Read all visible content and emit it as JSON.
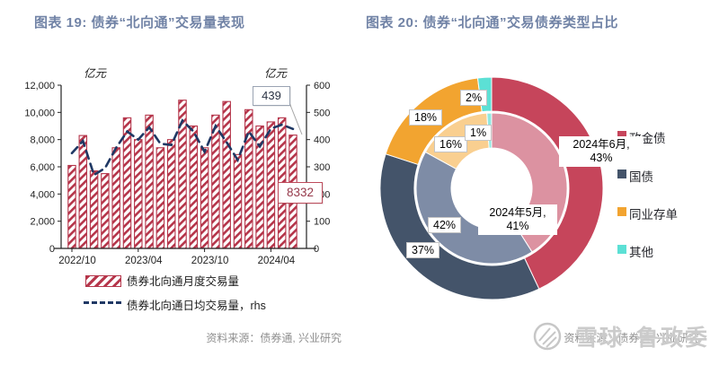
{
  "page": {
    "left": {
      "title": "图表 19: 债券“北向通”交易量表现",
      "unit_left": "亿元",
      "unit_right": "亿元",
      "legend": [
        {
          "label": "债券北向通月度交易量",
          "swatch": "hatch",
          "color": "#B5354A"
        },
        {
          "label": "债券北向通日均交易量，rhs",
          "swatch": "dash",
          "color": "#1F3864"
        }
      ],
      "source": "资料来源：债券通, 兴业研究"
    },
    "right": {
      "title": "图表 20: 债券“北向通”交易债券类型占比",
      "labels": {
        "p18": "18%",
        "p2": "2%",
        "p16": "16%",
        "p1": "1%",
        "p42": "42%",
        "p37": "37%",
        "june_l1": "2024年6月,",
        "june_l2": "43%",
        "may_l1": "2024年5月,",
        "may_l2": "41%"
      },
      "legend": [
        {
          "label": "政金债",
          "color": "#C6455B"
        },
        {
          "label": "国债",
          "color": "#44546A"
        },
        {
          "label": "同业存单",
          "color": "#F2A430"
        },
        {
          "label": "其他",
          "color": "#5CE0D5"
        }
      ],
      "source": "资料来源：债券通, 兴业研究",
      "watermark": {
        "name": "雪球",
        "author": "鲁政委"
      }
    }
  },
  "chart_data": [
    {
      "type": "bar",
      "title": "图表 19: 债券“北向通”交易量表现",
      "categories": [
        "2022/10",
        "2022/11",
        "2022/12",
        "2023/01",
        "2023/02",
        "2023/03",
        "2023/04",
        "2023/05",
        "2023/06",
        "2023/07",
        "2023/08",
        "2023/09",
        "2023/10",
        "2023/11",
        "2023/12",
        "2024/01",
        "2024/02",
        "2024/03",
        "2024/04",
        "2024/05",
        "2024/06"
      ],
      "x_tick_labels": [
        "2022/10",
        "2023/04",
        "2023/10",
        "2024/04"
      ],
      "x_tick_indices": [
        0,
        6,
        12,
        18
      ],
      "series": [
        {
          "name": "债券北向通月度交易量",
          "type": "bar",
          "axis": "left",
          "color": "#B5354A",
          "values": [
            6100,
            8300,
            5700,
            5500,
            7400,
            9600,
            8000,
            9800,
            7400,
            8000,
            10900,
            9000,
            7400,
            9800,
            10800,
            6900,
            10200,
            9000,
            9300,
            9600,
            8332
          ]
        },
        {
          "name": "债券北向通日均交易量，rhs",
          "type": "line",
          "axis": "right",
          "color": "#1F3864",
          "values": [
            350,
            395,
            270,
            295,
            370,
            430,
            400,
            445,
            385,
            380,
            470,
            430,
            355,
            450,
            390,
            325,
            430,
            375,
            440,
            455,
            439
          ]
        }
      ],
      "left_axis": {
        "label": "亿元",
        "min": 0,
        "max": 12000,
        "step": 2000
      },
      "right_axis": {
        "label": "亿元",
        "min": 0,
        "max": 600,
        "step": 100
      },
      "annotations": [
        {
          "target": "line_last_point",
          "text": "439"
        },
        {
          "target": "bar_last_point",
          "text": "8332"
        }
      ],
      "grid": false,
      "legend_position": "bottom"
    },
    {
      "type": "pie",
      "subtype": "double-donut",
      "title": "图表 20: 债券“北向通”交易债券类型占比",
      "categories": [
        "政金债",
        "国债",
        "同业存单",
        "其他"
      ],
      "rings": [
        {
          "name": "2024年6月",
          "position": "outer",
          "values": [
            43,
            37,
            18,
            2
          ],
          "colors": [
            "#C6455B",
            "#44546A",
            "#F2A430",
            "#5CE0D5"
          ],
          "callout": "2024年6月, 43%"
        },
        {
          "name": "2024年5月",
          "position": "inner",
          "values": [
            41,
            42,
            16,
            1
          ],
          "colors": [
            "#DC92A1",
            "#7E8CA6",
            "#F9CF90",
            "#8FE8E0"
          ],
          "callout": "2024年5月, 41%"
        }
      ],
      "legend_position": "right"
    }
  ]
}
